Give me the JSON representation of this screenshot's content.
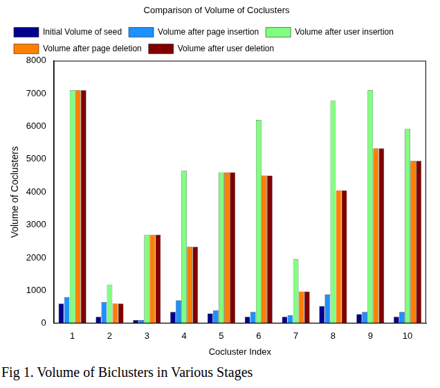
{
  "chart_data": {
    "type": "bar",
    "title": "Comparison of Volume of Coclusters",
    "x_label": "Cocluster Index",
    "y_label": "Volume of Coclusters",
    "caption": "Fig 1. Volume of Biclusters in Various Stages",
    "categories": [
      "1",
      "2",
      "3",
      "4",
      "5",
      "6",
      "7",
      "8",
      "9",
      "10"
    ],
    "series": [
      {
        "name": "Initial Volume of seed",
        "color": "#00008f",
        "values": [
          600,
          200,
          100,
          350,
          300,
          200,
          200,
          530,
          280,
          200
        ]
      },
      {
        "name": "Volume after page insertion",
        "color": "#1e90ff",
        "values": [
          800,
          650,
          100,
          700,
          400,
          350,
          250,
          880,
          350,
          350
        ]
      },
      {
        "name": "Volume after user insertion",
        "color": "#80ff80",
        "values": [
          7100,
          1180,
          2700,
          4650,
          4600,
          6200,
          1950,
          6780,
          7100,
          5930
        ]
      },
      {
        "name": "Volume after page deletion",
        "color": "#ff8000",
        "values": [
          7100,
          600,
          2700,
          2330,
          4600,
          4500,
          970,
          4050,
          5330,
          4950
        ]
      },
      {
        "name": "Volume after user deletion",
        "color": "#800000",
        "values": [
          7100,
          600,
          2700,
          2330,
          4600,
          4500,
          970,
          4050,
          5330,
          4950
        ]
      }
    ],
    "ylim": [
      0,
      8000
    ],
    "yticks": [
      0,
      1000,
      2000,
      3000,
      4000,
      5000,
      6000,
      7000,
      8000
    ],
    "grid": false,
    "legend": "top-left"
  }
}
